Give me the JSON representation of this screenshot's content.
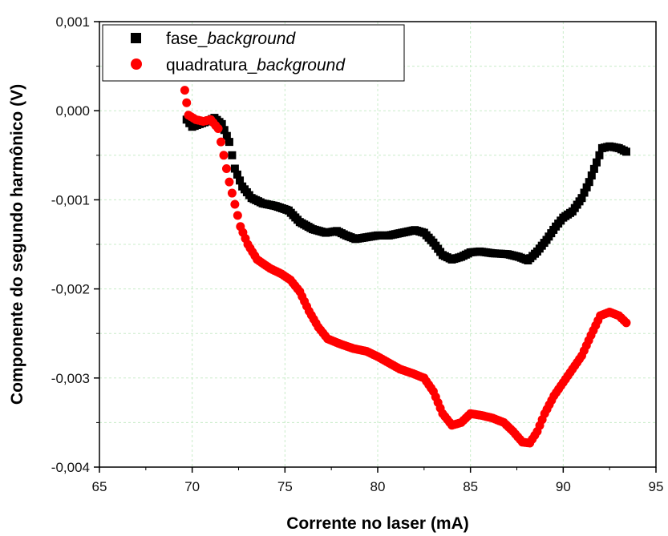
{
  "chart_data": {
    "type": "scatter",
    "xlabel": "Corrente no laser (mA)",
    "ylabel": "Componente do segundo harmônico (V)",
    "xlim": [
      65,
      95
    ],
    "ylim": [
      -0.004,
      0.001
    ],
    "xticks": [
      65,
      70,
      75,
      80,
      85,
      90,
      95
    ],
    "xtick_labels": [
      "65",
      "70",
      "75",
      "80",
      "85",
      "90",
      "95"
    ],
    "yticks": [
      -0.004,
      -0.003,
      -0.002,
      -0.001,
      0.0,
      0.001
    ],
    "ytick_labels": [
      "-0,004",
      "-0,003",
      "-0,002",
      "-0,001",
      "0,000",
      "0,001"
    ],
    "grid": true,
    "legend_position": "top-left",
    "series": [
      {
        "name": "fase_",
        "name_italic": "background",
        "marker": "square",
        "color": "#000000",
        "points": [
          [
            69.7,
            -0.0001
          ],
          [
            70.0,
            -0.00018
          ],
          [
            70.4,
            -0.00015
          ],
          [
            70.8,
            -0.00012
          ],
          [
            71.2,
            -8e-05
          ],
          [
            71.6,
            -0.00015
          ],
          [
            72.0,
            -0.00035
          ],
          [
            72.3,
            -0.00065
          ],
          [
            72.7,
            -0.00085
          ],
          [
            73.2,
            -0.00098
          ],
          [
            73.8,
            -0.00104
          ],
          [
            74.5,
            -0.00107
          ],
          [
            75.2,
            -0.00112
          ],
          [
            75.8,
            -0.00125
          ],
          [
            76.5,
            -0.00133
          ],
          [
            77.2,
            -0.00137
          ],
          [
            77.8,
            -0.00135
          ],
          [
            78.3,
            -0.0014
          ],
          [
            78.8,
            -0.00144
          ],
          [
            79.4,
            -0.00142
          ],
          [
            80.0,
            -0.0014
          ],
          [
            80.6,
            -0.0014
          ],
          [
            81.3,
            -0.00137
          ],
          [
            82.0,
            -0.00134
          ],
          [
            82.5,
            -0.00137
          ],
          [
            83.0,
            -0.00148
          ],
          [
            83.5,
            -0.00162
          ],
          [
            84.0,
            -0.00167
          ],
          [
            84.5,
            -0.00164
          ],
          [
            85.0,
            -0.00159
          ],
          [
            85.5,
            -0.00158
          ],
          [
            86.2,
            -0.0016
          ],
          [
            87.0,
            -0.00161
          ],
          [
            87.6,
            -0.00164
          ],
          [
            88.1,
            -0.00168
          ],
          [
            88.6,
            -0.00158
          ],
          [
            89.1,
            -0.00145
          ],
          [
            89.6,
            -0.0013
          ],
          [
            90.0,
            -0.0012
          ],
          [
            90.5,
            -0.00113
          ],
          [
            91.0,
            -0.00098
          ],
          [
            91.4,
            -0.0008
          ],
          [
            91.8,
            -0.00058
          ],
          [
            92.1,
            -0.00042
          ],
          [
            92.5,
            -0.0004
          ],
          [
            93.0,
            -0.00042
          ],
          [
            93.4,
            -0.00046
          ]
        ]
      },
      {
        "name": "quadratura_",
        "name_italic": "background",
        "marker": "circle",
        "color": "#ff0000",
        "points": [
          [
            69.6,
            0.00023
          ],
          [
            69.8,
            -5e-05
          ],
          [
            70.2,
            -0.0001
          ],
          [
            70.6,
            -0.00012
          ],
          [
            71.0,
            -0.0001
          ],
          [
            71.4,
            -0.0002
          ],
          [
            71.7,
            -0.0005
          ],
          [
            72.0,
            -0.0008
          ],
          [
            72.3,
            -0.00105
          ],
          [
            72.6,
            -0.0013
          ],
          [
            73.0,
            -0.0015
          ],
          [
            73.5,
            -0.00167
          ],
          [
            74.2,
            -0.00177
          ],
          [
            74.8,
            -0.00183
          ],
          [
            75.3,
            -0.0019
          ],
          [
            75.8,
            -0.00203
          ],
          [
            76.3,
            -0.00225
          ],
          [
            76.8,
            -0.00243
          ],
          [
            77.3,
            -0.00256
          ],
          [
            78.0,
            -0.00262
          ],
          [
            78.7,
            -0.00267
          ],
          [
            79.4,
            -0.0027
          ],
          [
            80.0,
            -0.00276
          ],
          [
            80.6,
            -0.00283
          ],
          [
            81.2,
            -0.0029
          ],
          [
            81.9,
            -0.00295
          ],
          [
            82.5,
            -0.003
          ],
          [
            83.0,
            -0.00315
          ],
          [
            83.5,
            -0.0034
          ],
          [
            84.0,
            -0.00353
          ],
          [
            84.5,
            -0.0035
          ],
          [
            85.0,
            -0.0034
          ],
          [
            85.6,
            -0.00342
          ],
          [
            86.2,
            -0.00345
          ],
          [
            86.8,
            -0.0035
          ],
          [
            87.3,
            -0.0036
          ],
          [
            87.8,
            -0.00372
          ],
          [
            88.2,
            -0.00373
          ],
          [
            88.6,
            -0.0036
          ],
          [
            89.0,
            -0.0034
          ],
          [
            89.5,
            -0.0032
          ],
          [
            90.0,
            -0.00305
          ],
          [
            90.5,
            -0.0029
          ],
          [
            91.0,
            -0.00275
          ],
          [
            91.5,
            -0.00252
          ],
          [
            92.0,
            -0.0023
          ],
          [
            92.5,
            -0.00226
          ],
          [
            93.0,
            -0.0023
          ],
          [
            93.4,
            -0.00238
          ]
        ]
      }
    ]
  }
}
